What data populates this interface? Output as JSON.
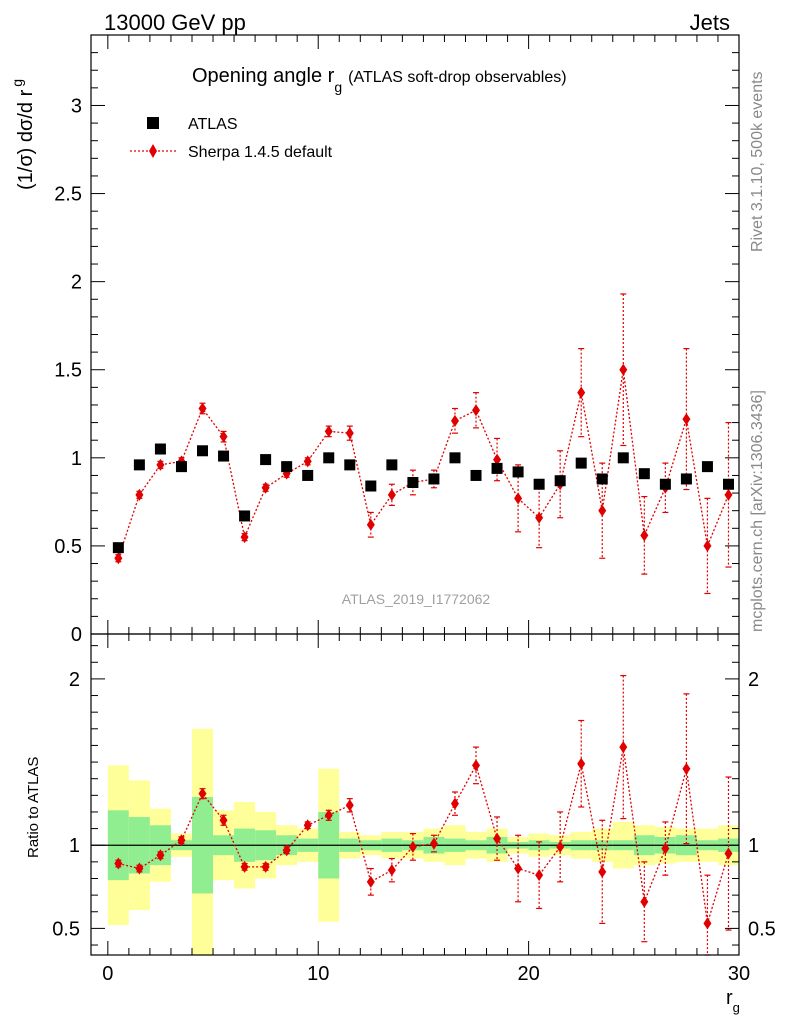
{
  "header": {
    "left": "13000 GeV pp",
    "right": "Jets",
    "side_upper": "Rivet 3.1.10,  500k events",
    "side_lower": "mcplots.cern.ch [arXiv:1306.3436]",
    "watermark": "ATLAS_2019_I1772062"
  },
  "colors": {
    "data": "#000000",
    "mc": "#e00000",
    "band_inner": "#90ee90",
    "band_outer": "#ffff99"
  },
  "chart_data": {
    "type": "scatter",
    "title_main": "Opening angle r",
    "title_sub": "g",
    "title_rest": "(ATLAS soft-drop observables)",
    "ylabel_main": "(1/σ) dσ/d r",
    "ylabel_sub": "g",
    "ratio_ylabel": "Ratio to ATLAS",
    "xlabel_main": "r",
    "xlabel_sub": "g",
    "xlim": [
      -0.8,
      30
    ],
    "ylim_main": [
      0,
      3.4
    ],
    "ylim_ratio": [
      0.34,
      2.27
    ],
    "x_ticks": [
      "0",
      "10",
      "20",
      "30"
    ],
    "y_ticks_main": [
      "0",
      "0.5",
      "1",
      "1.5",
      "2",
      "2.5",
      "3"
    ],
    "y_ticks_ratio": [
      "0.5",
      "1",
      "2"
    ],
    "legend": {
      "placement": "top-left",
      "data_label": "ATLAS",
      "mc_label": "Sherpa 1.4.5 default"
    },
    "bin_edges": [
      0,
      1,
      2,
      3,
      4,
      5,
      6,
      7,
      8,
      9,
      10,
      11,
      12,
      13,
      14,
      15,
      16,
      17,
      18,
      19,
      20,
      21,
      22,
      23,
      24,
      25,
      26,
      27,
      28,
      29,
      30
    ],
    "data_values": [
      0.49,
      0.96,
      1.05,
      0.95,
      1.04,
      1.01,
      0.67,
      0.99,
      0.95,
      0.9,
      1.0,
      0.96,
      0.84,
      0.96,
      0.86,
      0.88,
      1.0,
      0.9,
      0.94,
      0.92,
      0.85,
      0.87,
      0.97,
      0.88,
      1.0,
      0.91,
      0.85,
      0.88,
      0.95,
      0.85
    ],
    "mc_values": [
      0.43,
      0.79,
      0.96,
      0.98,
      1.28,
      1.12,
      0.55,
      0.83,
      0.91,
      0.98,
      1.15,
      1.14,
      0.62,
      0.79,
      0.86,
      0.88,
      1.21,
      1.27,
      0.99,
      0.77,
      0.66,
      0.85,
      1.37,
      0.7,
      1.5,
      0.56,
      0.83,
      1.22,
      0.5,
      0.79
    ],
    "mc_errors": [
      0.02,
      0.02,
      0.02,
      0.02,
      0.03,
      0.03,
      0.02,
      0.02,
      0.02,
      0.02,
      0.03,
      0.04,
      0.07,
      0.06,
      0.07,
      0.05,
      0.07,
      0.1,
      0.12,
      0.19,
      0.17,
      0.19,
      0.25,
      0.27,
      0.43,
      0.22,
      0.14,
      0.4,
      0.27,
      0.41
    ],
    "ratio_values": [
      0.89,
      0.86,
      0.94,
      1.03,
      1.31,
      1.15,
      0.87,
      0.87,
      0.97,
      1.12,
      1.18,
      1.24,
      0.78,
      0.85,
      0.99,
      1.01,
      1.25,
      1.48,
      1.04,
      0.86,
      0.82,
      0.99,
      1.49,
      0.84,
      1.59,
      0.66,
      0.98,
      1.46,
      0.53,
      0.95
    ],
    "ratio_errors": [
      0.02,
      0.02,
      0.02,
      0.02,
      0.03,
      0.03,
      0.02,
      0.02,
      0.02,
      0.02,
      0.03,
      0.04,
      0.08,
      0.07,
      0.08,
      0.05,
      0.07,
      0.11,
      0.13,
      0.2,
      0.2,
      0.21,
      0.26,
      0.31,
      0.43,
      0.24,
      0.16,
      0.45,
      0.29,
      0.46
    ],
    "band_inner": [
      0.21,
      0.17,
      0.12,
      0.03,
      0.29,
      0.06,
      0.1,
      0.09,
      0.06,
      0.04,
      0.2,
      0.04,
      0.03,
      0.04,
      0.03,
      0.05,
      0.04,
      0.03,
      0.05,
      0.02,
      0.03,
      0.02,
      0.03,
      0.03,
      0.03,
      0.06,
      0.05,
      0.06,
      0.03,
      0.04
    ],
    "band_outer": [
      0.48,
      0.39,
      0.22,
      0.07,
      0.7,
      0.21,
      0.26,
      0.2,
      0.12,
      0.1,
      0.46,
      0.08,
      0.06,
      0.08,
      0.08,
      0.1,
      0.12,
      0.08,
      0.1,
      0.05,
      0.07,
      0.06,
      0.08,
      0.1,
      0.14,
      0.12,
      0.11,
      0.1,
      0.1,
      0.12
    ]
  }
}
